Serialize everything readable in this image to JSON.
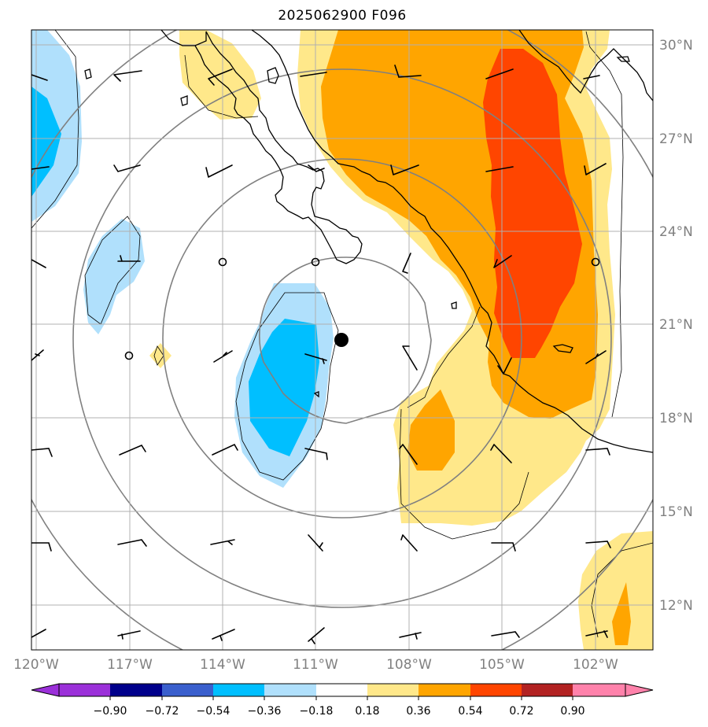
{
  "title": "2025062900 F096",
  "map": {
    "lat_labels": [
      "30°N",
      "27°N",
      "24°N",
      "21°N",
      "18°N",
      "15°N",
      "12°N"
    ],
    "lon_labels": [
      "120°W",
      "117°W",
      "114°W",
      "111°W",
      "108°W",
      "105°W",
      "102°W"
    ],
    "storm_marker": "filled-circle",
    "range_rings": 4
  },
  "colorbar": {
    "ticks": [
      "−0.90",
      "−0.72",
      "−0.54",
      "−0.36",
      "−0.18",
      "0.18",
      "0.36",
      "0.54",
      "0.72",
      "0.90"
    ],
    "colors": [
      "#9b30d9",
      "#00008b",
      "#3a5fcd",
      "#00bfff",
      "#b0e0fc",
      "#ffffff",
      "#ffe88a",
      "#ffa500",
      "#ff4500",
      "#b22222",
      "#ff82ab"
    ]
  }
}
